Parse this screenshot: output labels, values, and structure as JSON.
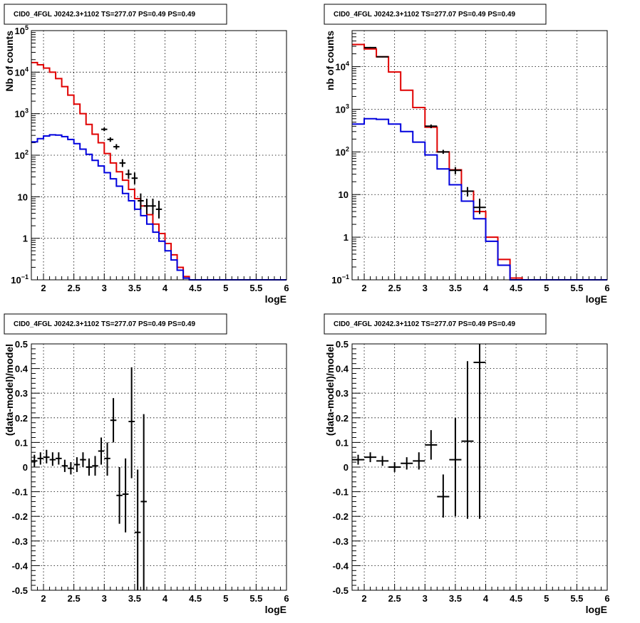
{
  "colors": {
    "data": "#000000",
    "model_total": "#e00000",
    "model_source": "#0000dd",
    "grid": "#000000"
  },
  "chart_data": [
    {
      "type": "line",
      "panel": "top-left",
      "title": "CID0_4FGL J0242.3+1102 TS=277.07 PS=0.49 PS=0.49",
      "xlabel": "logE",
      "ylabel": "Nb of counts",
      "xlim": [
        1.8,
        6.0
      ],
      "ylim": [
        0.1,
        100000
      ],
      "yscale": "log",
      "grid": true,
      "x_ticks": [
        "2",
        "2.5",
        "3",
        "3.5",
        "4",
        "4.5",
        "5",
        "5.5",
        "6"
      ],
      "y_ticks": [
        "10^-1",
        "1",
        "10",
        "10^2",
        "10^3",
        "10^4",
        "10^5"
      ],
      "x_tick_values": [
        2,
        2.5,
        3,
        3.5,
        4,
        4.5,
        5,
        5.5,
        6
      ],
      "y_tick_values": [
        0.1,
        1,
        10,
        100,
        1000,
        10000,
        100000
      ],
      "series": [
        {
          "role": "model_total",
          "style": "step",
          "edges": [
            1.8,
            1.9,
            2.0,
            2.1,
            2.2,
            2.3,
            2.4,
            2.5,
            2.6,
            2.7,
            2.8,
            2.9,
            3.0,
            3.1,
            3.2,
            3.3,
            3.4,
            3.5,
            3.6,
            3.7,
            3.8,
            3.9,
            4.0,
            4.1,
            4.2,
            4.3,
            4.4,
            4.5,
            6.0
          ],
          "values": [
            17000,
            15000,
            12500,
            10000,
            7000,
            4500,
            2800,
            1700,
            1000,
            550,
            320,
            200,
            110,
            65,
            40,
            25,
            15,
            9,
            6,
            3.7,
            2.2,
            1.3,
            0.75,
            0.4,
            0.2,
            0.12,
            0.1,
            0.1
          ]
        },
        {
          "role": "model_source",
          "style": "step",
          "edges": [
            1.8,
            1.9,
            2.0,
            2.1,
            2.2,
            2.3,
            2.4,
            2.5,
            2.6,
            2.7,
            2.8,
            2.9,
            3.0,
            3.1,
            3.2,
            3.3,
            3.4,
            3.5,
            3.6,
            3.7,
            3.8,
            3.9,
            4.0,
            4.1,
            4.2,
            4.3,
            4.4,
            4.5,
            6.0
          ],
          "values": [
            210,
            250,
            290,
            310,
            305,
            280,
            240,
            190,
            140,
            105,
            75,
            55,
            38,
            27,
            18,
            12,
            8,
            5,
            3.5,
            2.2,
            1.4,
            0.85,
            0.5,
            0.3,
            0.17,
            0.11,
            0.1,
            0.1
          ]
        },
        {
          "role": "data",
          "style": "errorbar",
          "points": [
            {
              "x": 3.0,
              "y": 420,
              "ylo": 380,
              "yhi": 460,
              "xerr": 0.05
            },
            {
              "x": 3.1,
              "y": 240,
              "ylo": 210,
              "yhi": 270,
              "xerr": 0.05
            },
            {
              "x": 3.2,
              "y": 160,
              "ylo": 138,
              "yhi": 185,
              "xerr": 0.05
            },
            {
              "x": 3.3,
              "y": 65,
              "ylo": 52,
              "yhi": 80,
              "xerr": 0.05
            },
            {
              "x": 3.4,
              "y": 35,
              "ylo": 27,
              "yhi": 45,
              "xerr": 0.05
            },
            {
              "x": 3.5,
              "y": 28,
              "ylo": 20,
              "yhi": 38,
              "xerr": 0.05
            },
            {
              "x": 3.6,
              "y": 8,
              "ylo": 5,
              "yhi": 12,
              "xerr": 0.05
            },
            {
              "x": 3.7,
              "y": 6,
              "ylo": 3.8,
              "yhi": 9,
              "xerr": 0.05
            },
            {
              "x": 3.8,
              "y": 6,
              "ylo": 3.8,
              "yhi": 9,
              "xerr": 0.05
            },
            {
              "x": 3.9,
              "y": 5,
              "ylo": 3,
              "yhi": 8,
              "xerr": 0.05
            }
          ]
        }
      ]
    },
    {
      "type": "line",
      "panel": "top-right",
      "title": "CID0_4FGL J0242.3+1102 TS=277.07 PS=0.49 PS=0.49",
      "xlabel": "logE",
      "ylabel": "nb of counts",
      "xlim": [
        1.8,
        6.0
      ],
      "ylim": [
        0.1,
        70000
      ],
      "yscale": "log",
      "grid": true,
      "x_ticks": [
        "2",
        "2.5",
        "3",
        "3.5",
        "4",
        "4.5",
        "5",
        "5.5",
        "6"
      ],
      "y_ticks": [
        "10^-1",
        "1",
        "10",
        "10^2",
        "10^3",
        "10^4"
      ],
      "x_tick_values": [
        2,
        2.5,
        3,
        3.5,
        4,
        4.5,
        5,
        5.5,
        6
      ],
      "y_tick_values": [
        0.1,
        1,
        10,
        100,
        1000,
        10000
      ],
      "series": [
        {
          "role": "model_total",
          "style": "step",
          "edges": [
            1.8,
            2.0,
            2.2,
            2.4,
            2.6,
            2.8,
            3.0,
            3.2,
            3.4,
            3.6,
            3.8,
            4.0,
            4.2,
            4.4,
            4.6,
            6.0
          ],
          "values": [
            33000,
            26000,
            17000,
            7500,
            2800,
            1100,
            380,
            100,
            38,
            12,
            4,
            1,
            0.3,
            0.11,
            0.1
          ]
        },
        {
          "role": "model_source",
          "style": "step",
          "edges": [
            1.8,
            2.0,
            2.2,
            2.4,
            2.6,
            2.8,
            3.0,
            3.2,
            3.4,
            3.6,
            3.8,
            4.0,
            4.2,
            4.4,
            4.6,
            6.0
          ],
          "values": [
            450,
            600,
            580,
            450,
            300,
            170,
            85,
            40,
            17,
            7,
            2.7,
            0.8,
            0.22,
            0.1,
            0.1
          ]
        },
        {
          "role": "data",
          "style": "errorbar",
          "points": [
            {
              "x": 2.1,
              "y": 28000,
              "ylo": 27000,
              "yhi": 29000,
              "xerr": 0.1
            },
            {
              "x": 2.3,
              "y": 17000,
              "ylo": 16500,
              "yhi": 17500,
              "xerr": 0.1
            },
            {
              "x": 3.1,
              "y": 400,
              "ylo": 360,
              "yhi": 440,
              "xerr": 0.1
            },
            {
              "x": 3.3,
              "y": 100,
              "ylo": 90,
              "yhi": 112,
              "xerr": 0.1
            },
            {
              "x": 3.5,
              "y": 37,
              "ylo": 30,
              "yhi": 44,
              "xerr": 0.1
            },
            {
              "x": 3.7,
              "y": 12,
              "ylo": 9,
              "yhi": 15,
              "xerr": 0.1
            },
            {
              "x": 3.9,
              "y": 5,
              "ylo": 3.5,
              "yhi": 8,
              "xerr": 0.1
            }
          ]
        }
      ]
    },
    {
      "type": "scatter",
      "panel": "bottom-left",
      "title": "CID0_4FGL J0242.3+1102 TS=277.07 PS=0.49 PS=0.49",
      "xlabel": "logE",
      "ylabel": "(data-model)/model",
      "xlim": [
        1.8,
        6.0
      ],
      "ylim": [
        -0.5,
        0.5
      ],
      "yscale": "linear",
      "grid": true,
      "x_ticks": [
        "2",
        "2.5",
        "3",
        "3.5",
        "4",
        "4.5",
        "5",
        "5.5",
        "6"
      ],
      "y_ticks": [
        "-0.5",
        "-0.4",
        "-0.3",
        "-0.2",
        "-0.1",
        "0",
        "0.1",
        "0.2",
        "0.3",
        "0.4",
        "0.5"
      ],
      "x_tick_values": [
        2,
        2.5,
        3,
        3.5,
        4,
        4.5,
        5,
        5.5,
        6
      ],
      "y_tick_values": [
        -0.5,
        -0.4,
        -0.3,
        -0.2,
        -0.1,
        0,
        0.1,
        0.2,
        0.3,
        0.4,
        0.5
      ],
      "series": [
        {
          "role": "data",
          "style": "errorbar",
          "points": [
            {
              "x": 1.85,
              "y": 0.025,
              "ylo": 0.0,
              "yhi": 0.05,
              "xerr": 0.05
            },
            {
              "x": 1.95,
              "y": 0.035,
              "ylo": 0.01,
              "yhi": 0.06,
              "xerr": 0.05
            },
            {
              "x": 2.05,
              "y": 0.04,
              "ylo": 0.015,
              "yhi": 0.07,
              "xerr": 0.05
            },
            {
              "x": 2.15,
              "y": 0.03,
              "ylo": 0.005,
              "yhi": 0.06,
              "xerr": 0.05
            },
            {
              "x": 2.25,
              "y": 0.035,
              "ylo": 0.01,
              "yhi": 0.06,
              "xerr": 0.05
            },
            {
              "x": 2.35,
              "y": 0.005,
              "ylo": -0.02,
              "yhi": 0.03,
              "xerr": 0.05
            },
            {
              "x": 2.45,
              "y": -0.005,
              "ylo": -0.03,
              "yhi": 0.02,
              "xerr": 0.05
            },
            {
              "x": 2.55,
              "y": 0.01,
              "ylo": -0.02,
              "yhi": 0.04,
              "xerr": 0.05
            },
            {
              "x": 2.65,
              "y": 0.03,
              "ylo": 0.0,
              "yhi": 0.06,
              "xerr": 0.05
            },
            {
              "x": 2.75,
              "y": 0.0,
              "ylo": -0.035,
              "yhi": 0.035,
              "xerr": 0.05
            },
            {
              "x": 2.85,
              "y": 0.005,
              "ylo": -0.035,
              "yhi": 0.045,
              "xerr": 0.05
            },
            {
              "x": 2.95,
              "y": 0.065,
              "ylo": 0.01,
              "yhi": 0.12,
              "xerr": 0.05
            },
            {
              "x": 3.05,
              "y": 0.035,
              "ylo": -0.035,
              "yhi": 0.1,
              "xerr": 0.05
            },
            {
              "x": 3.15,
              "y": 0.19,
              "ylo": 0.1,
              "yhi": 0.28,
              "xerr": 0.05
            },
            {
              "x": 3.25,
              "y": -0.115,
              "ylo": -0.23,
              "yhi": 0.0,
              "xerr": 0.05
            },
            {
              "x": 3.35,
              "y": -0.11,
              "ylo": -0.265,
              "yhi": 0.035,
              "xerr": 0.05
            },
            {
              "x": 3.45,
              "y": 0.185,
              "ylo": -0.045,
              "yhi": 0.405,
              "xerr": 0.05
            },
            {
              "x": 3.55,
              "y": -0.265,
              "ylo": -0.5,
              "yhi": -0.01,
              "xerr": 0.05
            },
            {
              "x": 3.65,
              "y": -0.14,
              "ylo": -0.5,
              "yhi": 0.215,
              "xerr": 0.05
            }
          ]
        }
      ]
    },
    {
      "type": "scatter",
      "panel": "bottom-right",
      "title": "CID0_4FGL J0242.3+1102 TS=277.07 PS=0.49 PS=0.49",
      "xlabel": "logE",
      "ylabel": "(data-model)/model",
      "xlim": [
        1.8,
        6.0
      ],
      "ylim": [
        -0.5,
        0.5
      ],
      "yscale": "linear",
      "grid": true,
      "x_ticks": [
        "2",
        "2.5",
        "3",
        "3.5",
        "4",
        "4.5",
        "5",
        "5.5",
        "6"
      ],
      "y_ticks": [
        "-0.5",
        "-0.4",
        "-0.3",
        "-0.2",
        "-0.1",
        "0",
        "0.1",
        "0.2",
        "0.3",
        "0.4",
        "0.5"
      ],
      "x_tick_values": [
        2,
        2.5,
        3,
        3.5,
        4,
        4.5,
        5,
        5.5,
        6
      ],
      "y_tick_values": [
        -0.5,
        -0.4,
        -0.3,
        -0.2,
        -0.1,
        0,
        0.1,
        0.2,
        0.3,
        0.4,
        0.5
      ],
      "series": [
        {
          "role": "data",
          "style": "errorbar",
          "points": [
            {
              "x": 1.9,
              "y": 0.03,
              "ylo": 0.01,
              "yhi": 0.05,
              "xerr": 0.1
            },
            {
              "x": 2.1,
              "y": 0.04,
              "ylo": 0.02,
              "yhi": 0.06,
              "xerr": 0.1
            },
            {
              "x": 2.3,
              "y": 0.025,
              "ylo": 0.005,
              "yhi": 0.045,
              "xerr": 0.1
            },
            {
              "x": 2.5,
              "y": 0.0,
              "ylo": -0.02,
              "yhi": 0.02,
              "xerr": 0.1
            },
            {
              "x": 2.7,
              "y": 0.015,
              "ylo": -0.01,
              "yhi": 0.04,
              "xerr": 0.1
            },
            {
              "x": 2.9,
              "y": 0.025,
              "ylo": -0.01,
              "yhi": 0.06,
              "xerr": 0.1
            },
            {
              "x": 3.1,
              "y": 0.09,
              "ylo": 0.03,
              "yhi": 0.15,
              "xerr": 0.1
            },
            {
              "x": 3.3,
              "y": -0.12,
              "ylo": -0.205,
              "yhi": -0.03,
              "xerr": 0.1
            },
            {
              "x": 3.5,
              "y": 0.03,
              "ylo": -0.2,
              "yhi": 0.2,
              "xerr": 0.1
            },
            {
              "x": 3.7,
              "y": 0.105,
              "ylo": -0.21,
              "yhi": 0.43,
              "xerr": 0.1
            },
            {
              "x": 3.9,
              "y": 0.425,
              "ylo": -0.21,
              "yhi": 0.5,
              "xerr": 0.1
            }
          ]
        }
      ]
    }
  ]
}
